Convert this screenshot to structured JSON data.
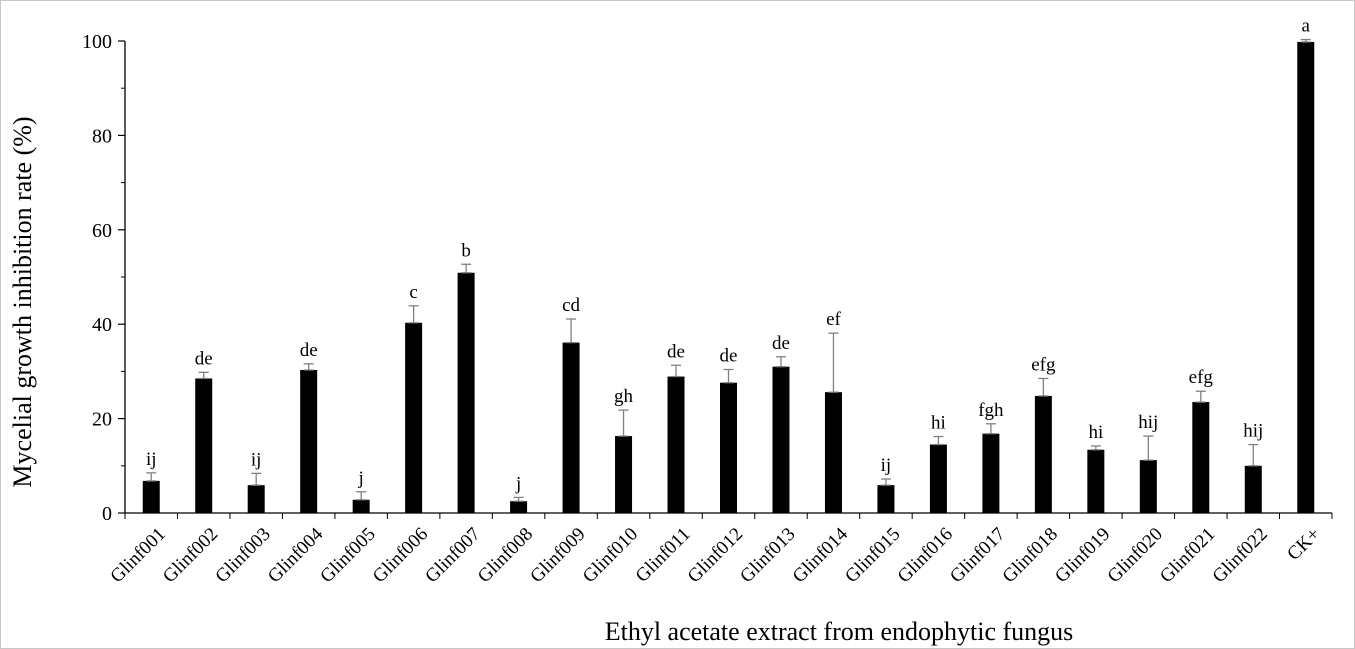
{
  "chart_data": {
    "type": "bar",
    "title": "",
    "xlabel": "Ethyl acetate extract from endophytic fungus",
    "ylabel": "Mycelial growth inhibition rate (%)",
    "ylim": [
      0,
      100
    ],
    "yticks": [
      0,
      20,
      40,
      60,
      80,
      100
    ],
    "grid": false,
    "legend": "none",
    "categories": [
      "Glinf001",
      "Glinf002",
      "Glinf003",
      "Glinf004",
      "Glinf005",
      "Glinf006",
      "Glinf007",
      "Glinf008",
      "Glinf009",
      "Glinf010",
      "Glinf011",
      "Glinf012",
      "Glinf013",
      "Glinf014",
      "Glinf015",
      "Glinf016",
      "Glinf017",
      "Glinf018",
      "Glinf019",
      "Glinf020",
      "Glinf021",
      "Glinf022",
      "CK+"
    ],
    "values": [
      6.8,
      28.5,
      5.9,
      30.3,
      2.8,
      40.3,
      50.9,
      2.5,
      36.1,
      16.3,
      28.9,
      27.6,
      31.0,
      25.6,
      5.9,
      14.5,
      16.8,
      24.8,
      13.4,
      11.2,
      23.5,
      10.0,
      99.8
    ],
    "errors": [
      1.7,
      1.3,
      2.5,
      1.3,
      1.7,
      3.6,
      1.8,
      0.8,
      5.0,
      5.5,
      2.4,
      2.8,
      2.1,
      12.5,
      1.3,
      1.7,
      2.1,
      3.7,
      0.8,
      5.1,
      2.3,
      4.5,
      0.5
    ],
    "letters": [
      "ij",
      "de",
      "ij",
      "de",
      "j",
      "c",
      "b",
      "j",
      "cd",
      "gh",
      "de",
      "de",
      "de",
      "ef",
      "ij",
      "hi",
      "fgh",
      "efg",
      "hi",
      "hij",
      "efg",
      "hij",
      "a"
    ],
    "colors": {
      "bar": "#000000",
      "error_bar": "#808080",
      "axis": "#000000"
    }
  }
}
